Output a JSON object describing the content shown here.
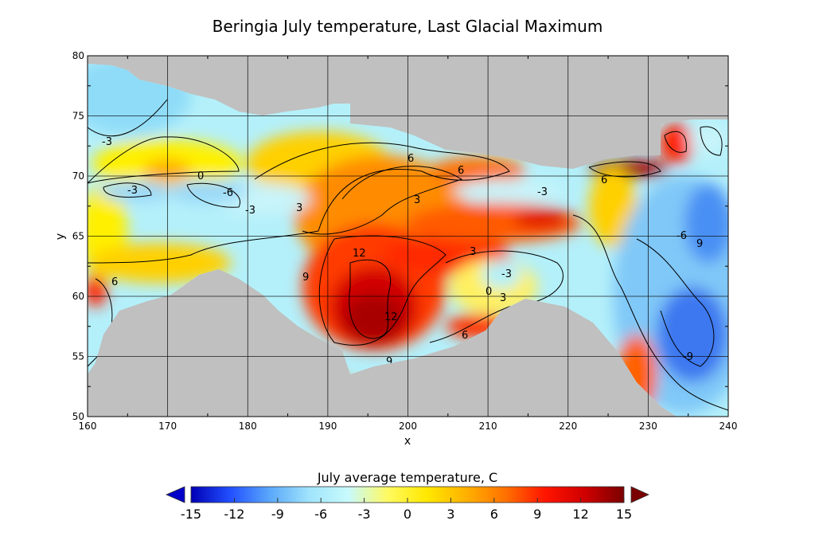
{
  "chart_data": {
    "type": "heatmap",
    "title": "Beringia July temperature, Last Glacial Maximum",
    "xlabel": "x",
    "ylabel": "y",
    "xlim": [
      160,
      240
    ],
    "ylim": [
      50,
      80
    ],
    "xticks": [
      "160",
      "170",
      "180",
      "190",
      "200",
      "210",
      "220",
      "230",
      "240"
    ],
    "yticks": [
      "50",
      "55",
      "60",
      "65",
      "70",
      "75",
      "80"
    ],
    "grid": true,
    "contour_interval": 3,
    "contour_labels": [
      "-3",
      "0",
      "-3",
      "-6",
      "-3",
      "3",
      "6",
      "3",
      "-3",
      "6",
      "12",
      "9",
      "12",
      "9",
      "6",
      "3",
      "0",
      "-3",
      "3",
      "6",
      "-6",
      "-9",
      "6",
      "9"
    ],
    "colorbar": {
      "label": "July average temperature,  C",
      "range": [
        -15,
        15
      ],
      "ticks": [
        "-15",
        "-12",
        "-9",
        "-6",
        "-3",
        "0",
        "3",
        "6",
        "9",
        "12",
        "15"
      ],
      "extend": "both",
      "colors": [
        "#0000b4",
        "#2a5cff",
        "#7ec8fa",
        "#c8fafc",
        "#fff000",
        "#ff8800",
        "#ff1400",
        "#7a0000"
      ]
    },
    "mask_color": "#c0c0c0"
  }
}
